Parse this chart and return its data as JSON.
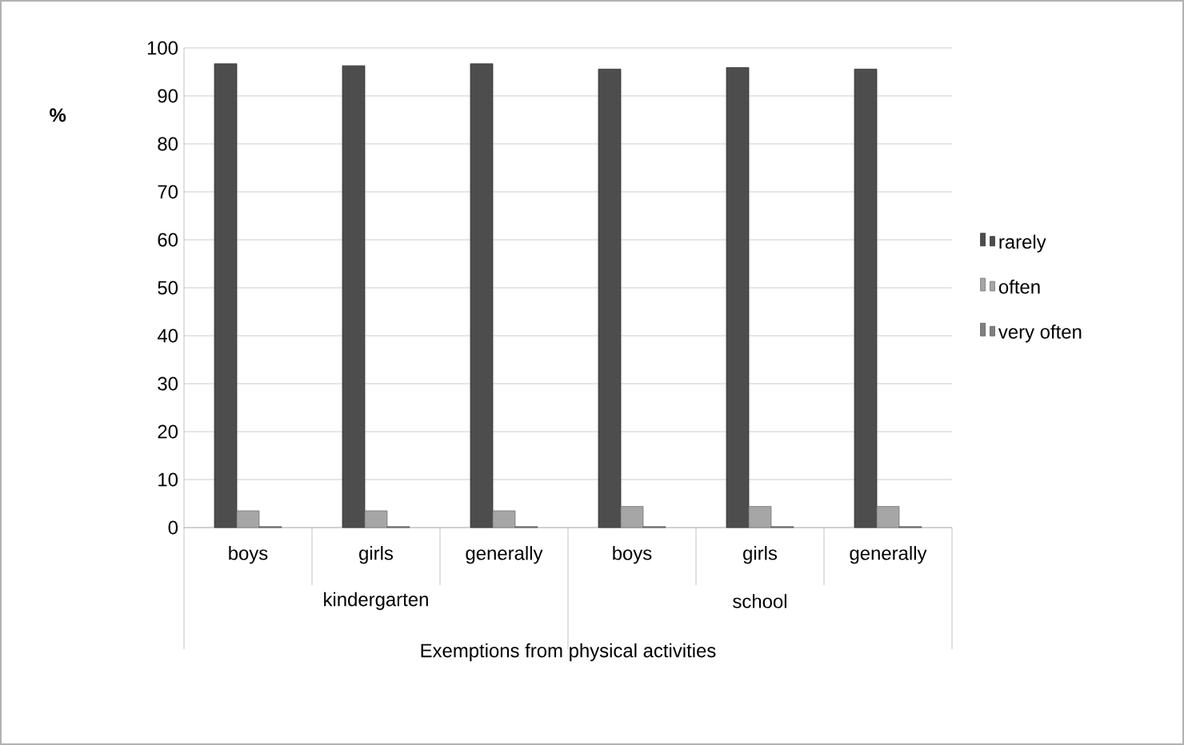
{
  "chart_data": {
    "type": "bar",
    "xlabel": "Exemptions from physical activities",
    "ylabel": "%",
    "categories": [
      "boys",
      "girls",
      "generally",
      "boys",
      "girls",
      "generally"
    ],
    "annotations": [
      "kindergarten",
      "school"
    ],
    "series": [
      {
        "name": "rarely",
        "color": "#4d4d4d",
        "values": [
          96.7,
          96.3,
          96.7,
          95.6,
          95.9,
          95.6
        ]
      },
      {
        "name": "often",
        "color": "#a6a6a6",
        "values": [
          3.5,
          3.5,
          3.5,
          4.4,
          4.4,
          4.4
        ]
      },
      {
        "name": "very often",
        "color": "#808080",
        "values": [
          0.2,
          0.2,
          0.2,
          0.2,
          0.2,
          0.2
        ]
      }
    ],
    "ylim": [
      0,
      100
    ],
    "yticks": [
      0,
      10,
      20,
      30,
      40,
      50,
      60,
      70,
      80,
      90,
      100
    ],
    "grid": "y",
    "legend": "right"
  }
}
